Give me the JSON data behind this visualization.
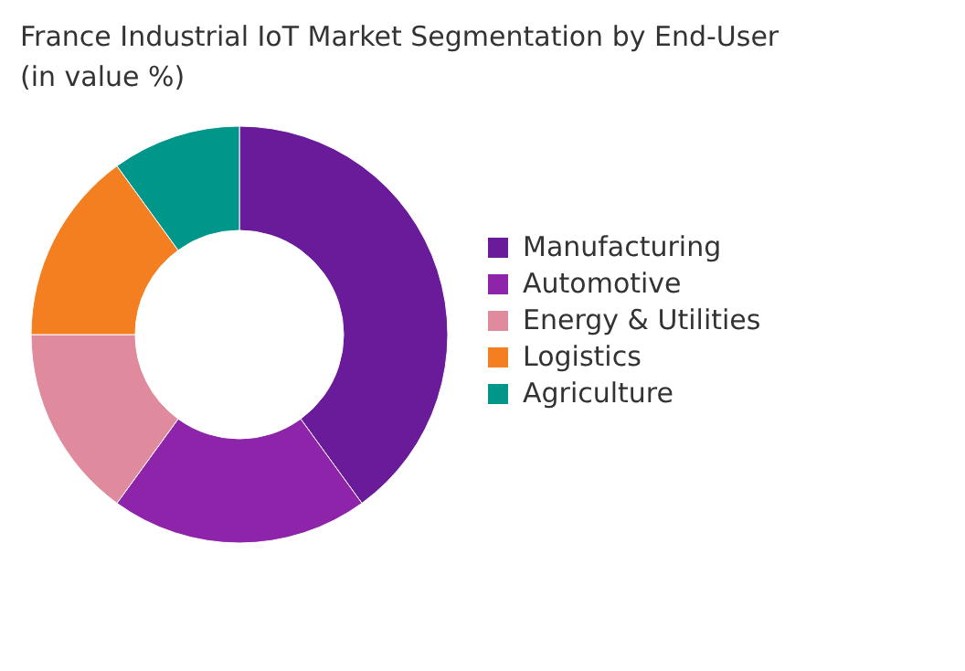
{
  "chart_data": {
    "type": "donut",
    "title": "France Industrial IoT Market Segmentation by End-User (in value %)",
    "categories": [
      "Manufacturing",
      "Automotive",
      "Energy & Utilities",
      "Logistics",
      "Agriculture"
    ],
    "values": [
      40,
      20,
      15,
      15,
      10
    ],
    "colors": [
      "#6a1b9a",
      "#8e24aa",
      "#e08a9e",
      "#f47f20",
      "#00968a"
    ],
    "legend": "right"
  }
}
